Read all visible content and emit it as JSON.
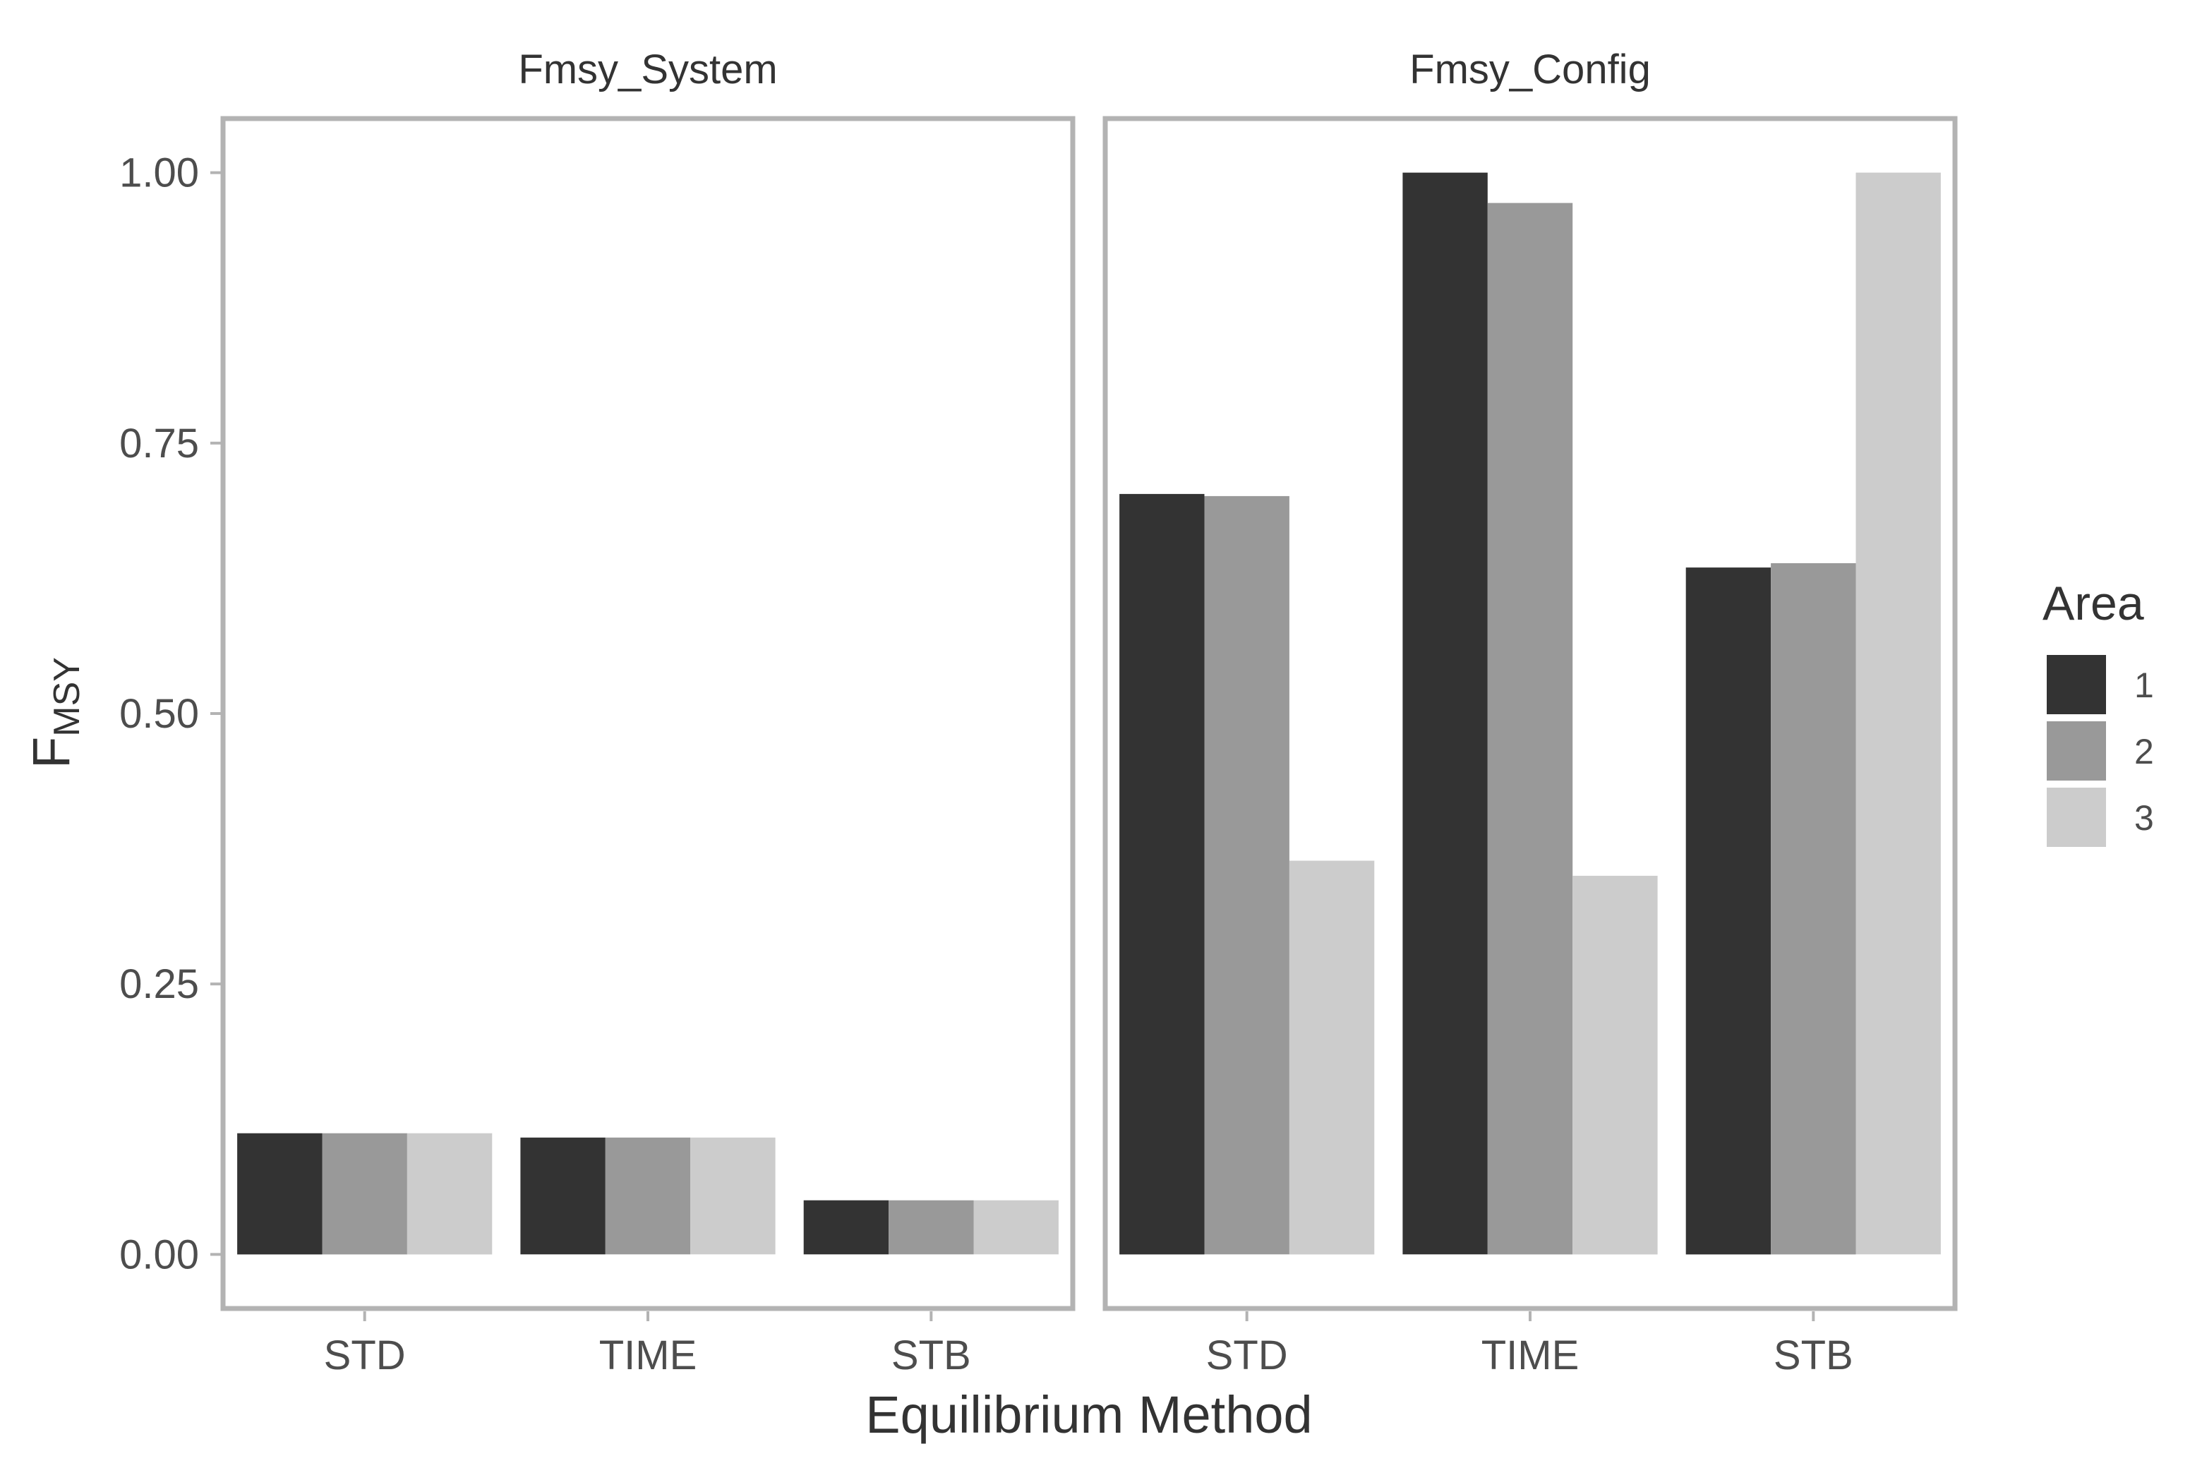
{
  "chart_data": {
    "type": "bar",
    "facet_titles": [
      "Fmsy_System",
      "Fmsy_Config"
    ],
    "categories": [
      "STD",
      "TIME",
      "STB"
    ],
    "xlabel": "Equilibrium Method",
    "ylabel": {
      "main": "F",
      "subscript": "MSY"
    },
    "ylim": [
      -0.05,
      1.05
    ],
    "y_ticks": [
      0.0,
      0.25,
      0.5,
      0.75,
      1.0
    ],
    "y_tick_labels": [
      "0.00",
      "0.25",
      "0.50",
      "0.75",
      "1.00"
    ],
    "grid": false,
    "legend": {
      "title": "Area",
      "position": "right",
      "entries": [
        "1",
        "2",
        "3"
      ]
    },
    "colors": [
      "#333333",
      "#999999",
      "#cccccc"
    ],
    "panels": [
      {
        "title": "Fmsy_System",
        "series": [
          {
            "name": "1",
            "values": [
              0.112,
              0.108,
              0.05
            ]
          },
          {
            "name": "2",
            "values": [
              0.112,
              0.108,
              0.05
            ]
          },
          {
            "name": "3",
            "values": [
              0.112,
              0.108,
              0.05
            ]
          }
        ]
      },
      {
        "title": "Fmsy_Config",
        "series": [
          {
            "name": "1",
            "values": [
              0.703,
              1.0,
              0.635
            ]
          },
          {
            "name": "2",
            "values": [
              0.701,
              0.972,
              0.639
            ]
          },
          {
            "name": "3",
            "values": [
              0.364,
              0.35,
              1.0
            ]
          }
        ]
      }
    ]
  }
}
